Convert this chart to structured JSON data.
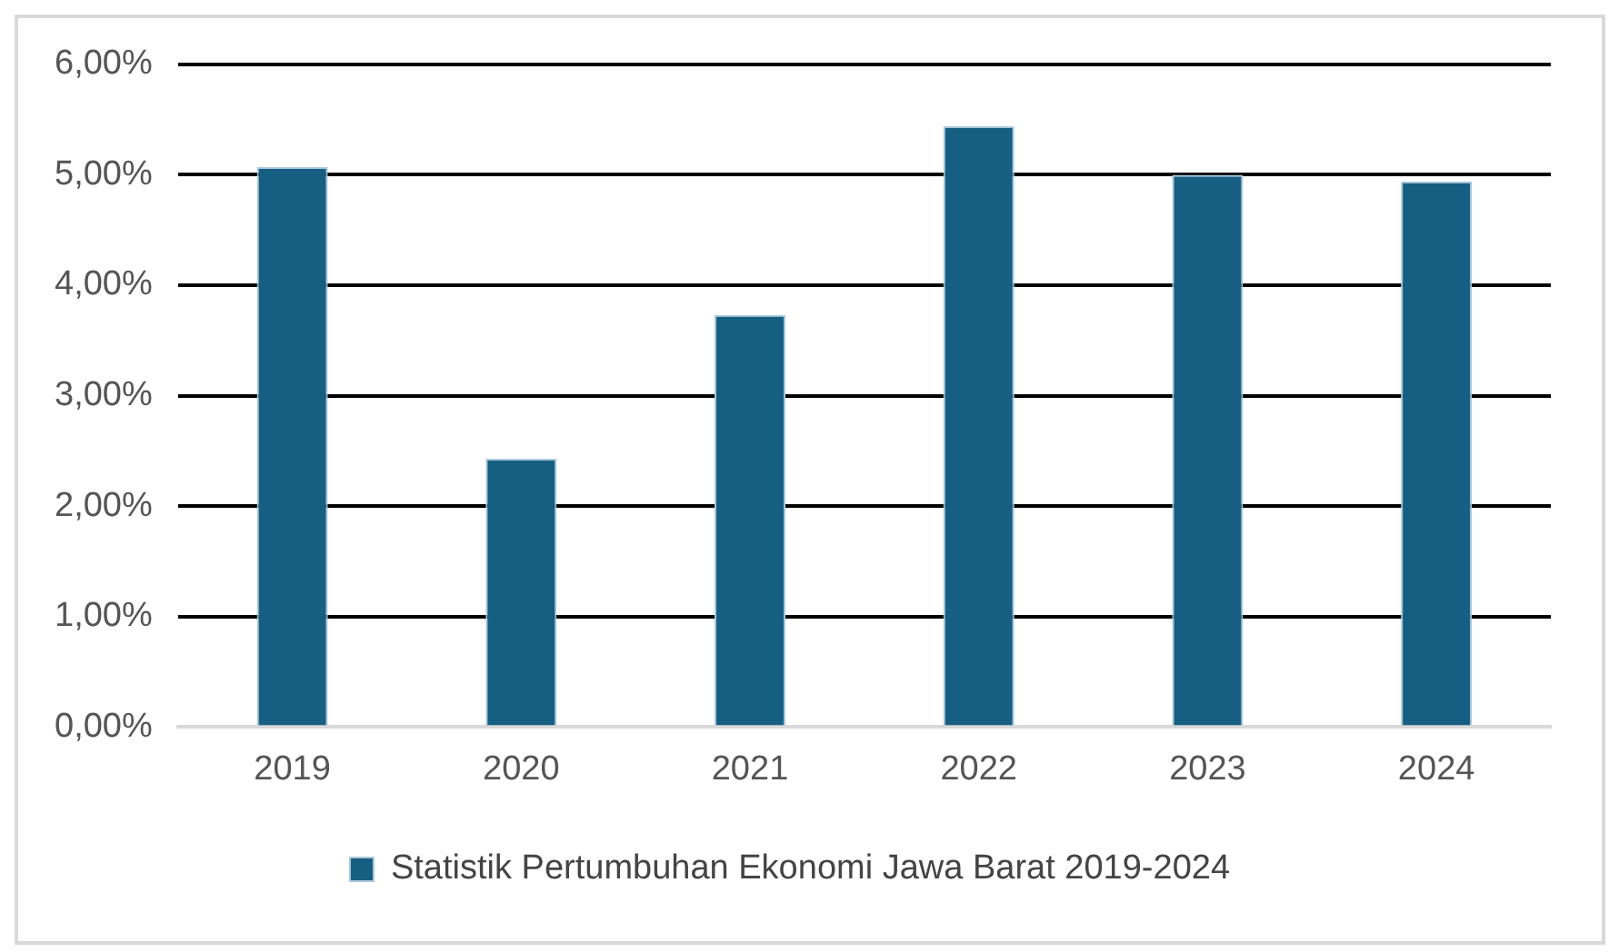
{
  "chart_data": {
    "type": "bar",
    "categories": [
      "2019",
      "2020",
      "2021",
      "2022",
      "2023",
      "2024"
    ],
    "series": [
      {
        "name": "Statistik Pertumbuhan Ekonomi Jawa Barat 2019-2024",
        "color": "#175f82",
        "values": [
          5.07,
          2.43,
          3.73,
          5.44,
          5.0,
          4.94
        ]
      }
    ],
    "ylim": [
      0,
      6
    ],
    "yticks": [
      {
        "value": 0,
        "label": "0,00%"
      },
      {
        "value": 1,
        "label": "1,00%"
      },
      {
        "value": 2,
        "label": "2,00%"
      },
      {
        "value": 3,
        "label": "3,00%"
      },
      {
        "value": 4,
        "label": "4,00%"
      },
      {
        "value": 5,
        "label": "5,00%"
      },
      {
        "value": 6,
        "label": "6,00%"
      }
    ],
    "grid": "y",
    "legend": "bottom"
  }
}
